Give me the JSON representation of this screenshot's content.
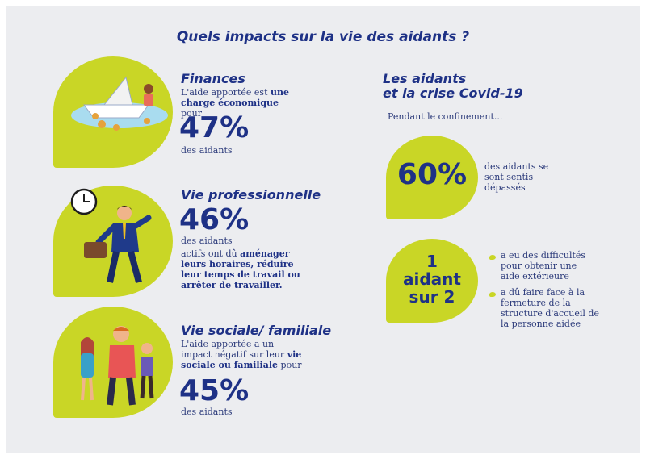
{
  "title": "Quels impacts sur la vie des aidants ?",
  "finances": {
    "heading": "Finances",
    "text_before": "L'aide apportée est ",
    "text_bold": "une charge économique",
    "text_after": " pour",
    "percent": "47%",
    "suffix": "des aidants"
  },
  "vie_pro": {
    "heading": "Vie professionnelle",
    "percent": "46%",
    "suffix": "des aidants",
    "text_before": "actifs ont dû ",
    "text_bold": "aménager leurs horaires, réduire leur temps de travail ou arrêter de travailler."
  },
  "vie_sociale": {
    "heading": "Vie sociale/ familiale",
    "text_before": "L'aide apportée a un impact négatif sur leur ",
    "text_bold": "vie sociale ou familiale",
    "text_after": " pour",
    "percent": "45%",
    "suffix": "des aidants"
  },
  "covid": {
    "heading_line1": "Les aidants",
    "heading_line2": "et la crise Covid-19",
    "intro": "Pendant le confinement...",
    "stat1_value": "60%",
    "stat1_text": "des aidants se sont sentis dépassés",
    "stat2_line1": "1",
    "stat2_line2": "aidant",
    "stat2_line3": "sur 2",
    "bullets": [
      "a eu des difficultés pour obtenir une aide extérieure",
      "a dû faire face à la fermeture de la structure d'accueil de la personne aidée"
    ]
  },
  "colors": {
    "navy": "#1e3186",
    "lime": "#c9d626",
    "background": "#ecedf0"
  },
  "icons": [
    "paper-boat-illustration",
    "clock-icon",
    "businessman-illustration",
    "family-illustration"
  ]
}
